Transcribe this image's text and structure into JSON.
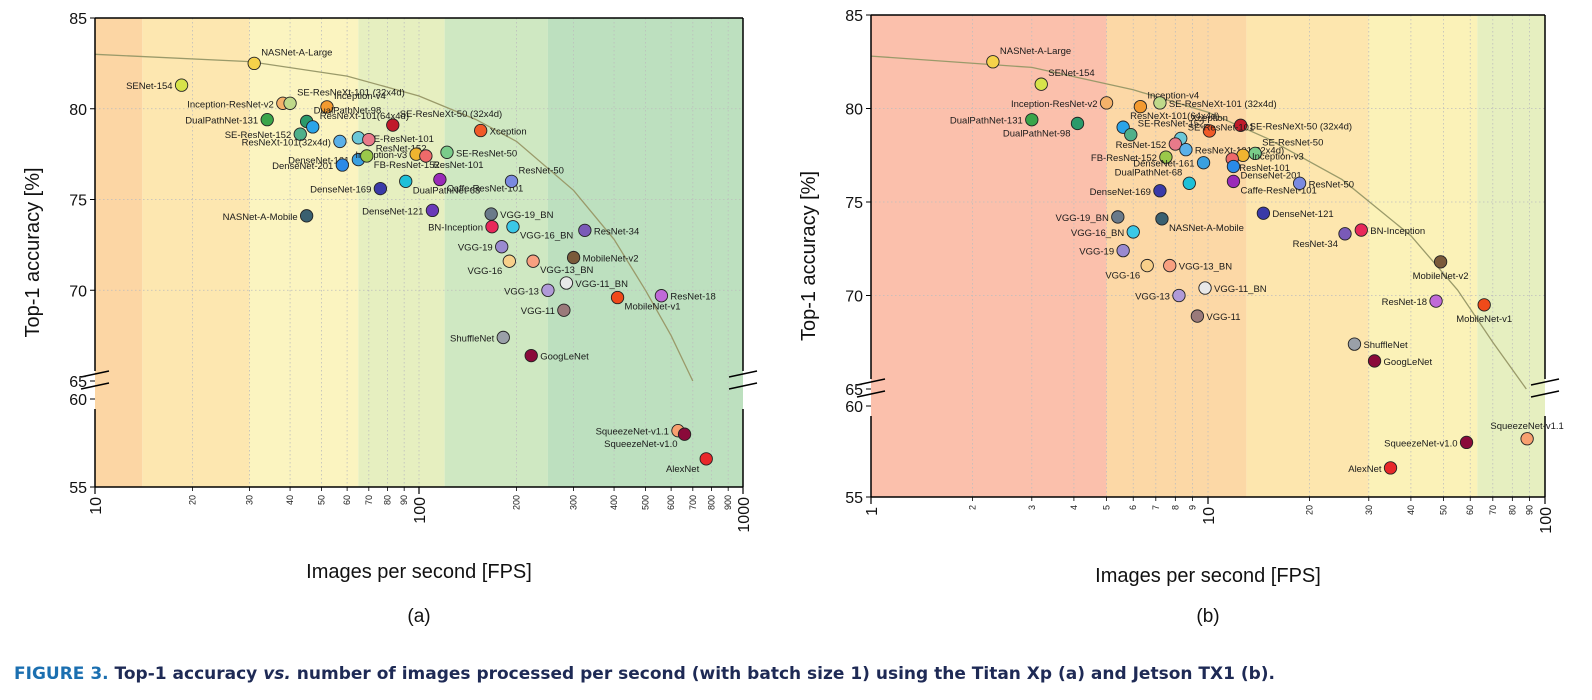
{
  "caption": {
    "figure_label": "FIGURE 3.",
    "text_a": "Top-1 accuracy",
    "text_vs": "vs.",
    "text_b": "number of images processed per second (with batch size 1) using the Titan Xp (a) and Jetson TX1 (b)."
  },
  "chart_data": [
    {
      "type": "scatter",
      "subplot_label": "(a)",
      "xlabel": "Images per second [FPS]",
      "ylabel": "Top-1 accuracy [%]",
      "xscale": "log",
      "xlim": [
        10,
        1000
      ],
      "ylim_upper": [
        65,
        85
      ],
      "ylim_lower": [
        55,
        60
      ],
      "y_ticks": [
        "85",
        "80",
        "75",
        "70",
        "65",
        "60",
        "55"
      ],
      "x_major_ticks": [
        "10",
        "100",
        "1000"
      ],
      "x_minor_ticks": [
        "20",
        "30",
        "40",
        "50",
        "60",
        "70",
        "80",
        "90",
        "200",
        "300",
        "400",
        "500",
        "600",
        "700",
        "800",
        "900"
      ],
      "bands": [
        {
          "from": 10,
          "to": 14,
          "color": "#fcd6a4"
        },
        {
          "from": 14,
          "to": 30,
          "color": "#fde7b0"
        },
        {
          "from": 30,
          "to": 65,
          "color": "#fbf4c0"
        },
        {
          "from": 65,
          "to": 120,
          "color": "#e6efc0"
        },
        {
          "from": 120,
          "to": 250,
          "color": "#cfe8c2"
        },
        {
          "from": 250,
          "to": 1000,
          "color": "#bde0bf"
        }
      ],
      "pareto_curve": [
        [
          10,
          83.0
        ],
        [
          30,
          82.6
        ],
        [
          60,
          81.8
        ],
        [
          100,
          80.7
        ],
        [
          150,
          79.4
        ],
        [
          200,
          78.2
        ],
        [
          300,
          75.5
        ],
        [
          400,
          72.8
        ],
        [
          500,
          70.0
        ],
        [
          600,
          67.5
        ],
        [
          700,
          65.0
        ]
      ],
      "points": [
        {
          "name": "NASNet-A-Large",
          "x": 31,
          "y": 82.5,
          "color": "#f5d24a",
          "label_pos": "ne"
        },
        {
          "name": "SENet-154",
          "x": 18.5,
          "y": 81.3,
          "color": "#d7e34a",
          "label_pos": "w"
        },
        {
          "name": "Inception-ResNet-v2",
          "x": 38,
          "y": 80.3,
          "color": "#f4b26a",
          "label_pos": "w"
        },
        {
          "name": "SE-ResNeXt-101 (32x4d)",
          "x": 40,
          "y": 80.3,
          "color": "#bfd98a",
          "label_pos": "ne"
        },
        {
          "name": "Inception-v4",
          "x": 52,
          "y": 80.1,
          "color": "#f39a30",
          "label_pos": "ne"
        },
        {
          "name": "DualPathNet-131",
          "x": 34,
          "y": 79.4,
          "color": "#3aa54a",
          "label_pos": "w"
        },
        {
          "name": "DualPathNet-98",
          "x": 45,
          "y": 79.3,
          "color": "#2a9a6a",
          "label_pos": "ne"
        },
        {
          "name": "ResNeXt-101(64x4d)",
          "x": 47,
          "y": 79.0,
          "color": "#2aa4e8",
          "label_pos": "ne"
        },
        {
          "name": "SE-ResNeXt-50 (32x4d)",
          "x": 83,
          "y": 79.1,
          "color": "#c01a2a",
          "label_pos": "ne"
        },
        {
          "name": "SE-ResNet-152",
          "x": 43,
          "y": 78.6,
          "color": "#4fb08a",
          "label_pos": "w"
        },
        {
          "name": "SE-ResNet-101",
          "x": 65,
          "y": 78.4,
          "color": "#6cc8d8",
          "label_pos": "e"
        },
        {
          "name": "ResNeXt-101(32x4d)",
          "x": 57,
          "y": 78.2,
          "color": "#5ab0e8",
          "label_pos": "w"
        },
        {
          "name": "ResNet-152",
          "x": 70,
          "y": 78.3,
          "color": "#e87a8a",
          "label_pos": "se"
        },
        {
          "name": "Xception",
          "x": 155,
          "y": 78.8,
          "color": "#f05a28",
          "label_pos": "e"
        },
        {
          "name": "DenseNet-161",
          "x": 65,
          "y": 77.2,
          "color": "#3aa0e0",
          "label_pos": "w"
        },
        {
          "name": "Inception-v3",
          "x": 98,
          "y": 77.5,
          "color": "#f0b430",
          "label_pos": "w"
        },
        {
          "name": "SE-ResNet-50",
          "x": 122,
          "y": 77.6,
          "color": "#7acc8a",
          "label_pos": "e"
        },
        {
          "name": "DenseNet-201",
          "x": 58,
          "y": 76.9,
          "color": "#2a8ae8",
          "label_pos": "w"
        },
        {
          "name": "FB-ResNet-152",
          "x": 69,
          "y": 77.4,
          "color": "#9ac84a",
          "label_pos": "se"
        },
        {
          "name": "ResNet-101",
          "x": 105,
          "y": 77.4,
          "color": "#ee6a6a",
          "label_pos": "se"
        },
        {
          "name": "DenseNet-169",
          "x": 76,
          "y": 75.6,
          "color": "#3a3aa8",
          "label_pos": "w"
        },
        {
          "name": "DualPathNet-68",
          "x": 91,
          "y": 76.0,
          "color": "#1ec0d8",
          "label_pos": "se"
        },
        {
          "name": "Caffe-ResNet-101",
          "x": 116,
          "y": 76.1,
          "color": "#9a2ab8",
          "label_pos": "se"
        },
        {
          "name": "ResNet-50",
          "x": 193,
          "y": 76.0,
          "color": "#7a8ae0",
          "label_pos": "ne"
        },
        {
          "name": "DenseNet-121",
          "x": 110,
          "y": 74.4,
          "color": "#6a3ab8",
          "label_pos": "w"
        },
        {
          "name": "NASNet-A-Mobile",
          "x": 45,
          "y": 74.1,
          "color": "#3a6070",
          "label_pos": "w"
        },
        {
          "name": "VGG-19_BN",
          "x": 167,
          "y": 74.2,
          "color": "#6a7a8a",
          "label_pos": "e"
        },
        {
          "name": "BN-Inception",
          "x": 168,
          "y": 73.5,
          "color": "#e8285a",
          "label_pos": "w"
        },
        {
          "name": "VGG-16_BN",
          "x": 195,
          "y": 73.5,
          "color": "#3ac8e8",
          "label_pos": "se"
        },
        {
          "name": "ResNet-34",
          "x": 325,
          "y": 73.3,
          "color": "#7a5ab8",
          "label_pos": "e"
        },
        {
          "name": "VGG-19",
          "x": 180,
          "y": 72.4,
          "color": "#9a8ad0",
          "label_pos": "w"
        },
        {
          "name": "VGG-16",
          "x": 190,
          "y": 71.6,
          "color": "#f8d08a",
          "label_pos": "sw"
        },
        {
          "name": "VGG-13_BN",
          "x": 225,
          "y": 71.6,
          "color": "#f8a080",
          "label_pos": "se"
        },
        {
          "name": "MobileNet-v2",
          "x": 300,
          "y": 71.8,
          "color": "#7a5a3a",
          "label_pos": "e"
        },
        {
          "name": "VGG-11_BN",
          "x": 285,
          "y": 70.4,
          "color": "#e8e8e8",
          "label_pos": "e"
        },
        {
          "name": "VGG-13",
          "x": 250,
          "y": 70.0,
          "color": "#b09ad8",
          "label_pos": "w"
        },
        {
          "name": "VGG-11",
          "x": 280,
          "y": 68.9,
          "color": "#9a7a7a",
          "label_pos": "w"
        },
        {
          "name": "MobileNet-v1",
          "x": 410,
          "y": 69.6,
          "color": "#f04a1a",
          "label_pos": "se"
        },
        {
          "name": "ResNet-18",
          "x": 560,
          "y": 69.7,
          "color": "#c06ad8",
          "label_pos": "e"
        },
        {
          "name": "ShuffleNet",
          "x": 182,
          "y": 67.4,
          "color": "#9aa0a8",
          "label_pos": "w"
        },
        {
          "name": "GoogLeNet",
          "x": 222,
          "y": 66.4,
          "color": "#8a0a3a",
          "label_pos": "e"
        },
        {
          "name": "SqueezeNet-v1.1",
          "x": 630,
          "y": 58.2,
          "color": "#f8a070",
          "label_pos": "w"
        },
        {
          "name": "SqueezeNet-v1.0",
          "x": 660,
          "y": 58.0,
          "color": "#8a0a3a",
          "label_pos": "sw"
        },
        {
          "name": "AlexNet",
          "x": 770,
          "y": 56.6,
          "color": "#e8282a",
          "label_pos": "sw"
        }
      ]
    },
    {
      "type": "scatter",
      "subplot_label": "(b)",
      "xlabel": "Images per second [FPS]",
      "ylabel": "Top-1 accuracy [%]",
      "xscale": "log",
      "xlim": [
        1,
        100
      ],
      "ylim_upper": [
        65,
        85
      ],
      "ylim_lower": [
        55,
        60
      ],
      "y_ticks": [
        "85",
        "80",
        "75",
        "70",
        "65",
        "60",
        "55"
      ],
      "x_major_ticks": [
        "1",
        "10",
        "100"
      ],
      "x_minor_ticks": [
        "2",
        "3",
        "4",
        "5",
        "6",
        "7",
        "8",
        "9",
        "20",
        "30",
        "40",
        "50",
        "60",
        "70",
        "80",
        "90"
      ],
      "bands": [
        {
          "from": 1,
          "to": 5,
          "color": "#fbc0ac"
        },
        {
          "from": 5,
          "to": 13,
          "color": "#fcd8a6"
        },
        {
          "from": 13,
          "to": 30,
          "color": "#fde6ae"
        },
        {
          "from": 30,
          "to": 63,
          "color": "#fbf2b8"
        },
        {
          "from": 63,
          "to": 100,
          "color": "#e6efc0"
        }
      ],
      "pareto_curve": [
        [
          1,
          82.8
        ],
        [
          3,
          82.2
        ],
        [
          6,
          81.0
        ],
        [
          10,
          79.8
        ],
        [
          15,
          78.4
        ],
        [
          25,
          76.2
        ],
        [
          40,
          73.2
        ],
        [
          55,
          70.3
        ],
        [
          70,
          67.5
        ],
        [
          88,
          65.0
        ]
      ],
      "points": [
        {
          "name": "NASNet-A-Large",
          "x": 2.3,
          "y": 82.5,
          "color": "#f5d24a",
          "label_pos": "ne"
        },
        {
          "name": "SENet-154",
          "x": 3.2,
          "y": 81.3,
          "color": "#d7e34a",
          "label_pos": "ne"
        },
        {
          "name": "Inception-ResNet-v2",
          "x": 5.0,
          "y": 80.3,
          "color": "#f4b26a",
          "label_pos": "w"
        },
        {
          "name": "Inception-v4",
          "x": 6.3,
          "y": 80.1,
          "color": "#f39a30",
          "label_pos": "ne"
        },
        {
          "name": "SE-ResNeXt-101 (32x4d)",
          "x": 7.2,
          "y": 80.3,
          "color": "#bfd98a",
          "label_pos": "e"
        },
        {
          "name": "DualPathNet-131",
          "x": 3.0,
          "y": 79.4,
          "color": "#3aa54a",
          "label_pos": "w"
        },
        {
          "name": "DualPathNet-98",
          "x": 4.1,
          "y": 79.2,
          "color": "#2a9a6a",
          "label_pos": "sw"
        },
        {
          "name": "ResNeXt-101(64x4d)",
          "x": 5.6,
          "y": 79.0,
          "color": "#2aa4e8",
          "label_pos": "ne"
        },
        {
          "name": "SE-ResNeXt-50 (32x4d)",
          "x": 12.5,
          "y": 79.1,
          "color": "#c01a2a",
          "label_pos": "e"
        },
        {
          "name": "SE-ResNet-152",
          "x": 5.9,
          "y": 78.6,
          "color": "#4fb08a",
          "label_pos": "ne"
        },
        {
          "name": "Xception",
          "x": 10.1,
          "y": 78.8,
          "color": "#f05a28",
          "label_pos": "n"
        },
        {
          "name": "SE-ResNet-101",
          "x": 8.3,
          "y": 78.4,
          "color": "#6cc8d8",
          "label_pos": "ne"
        },
        {
          "name": "ResNet-152",
          "x": 8.0,
          "y": 78.1,
          "color": "#e87a8a",
          "label_pos": "w"
        },
        {
          "name": "ResNeXt-101(32x4d)",
          "x": 8.6,
          "y": 77.8,
          "color": "#5ab0e8",
          "label_pos": "e"
        },
        {
          "name": "SE-ResNet-50",
          "x": 13.8,
          "y": 77.6,
          "color": "#7acc8a",
          "label_pos": "ne"
        },
        {
          "name": "FB-ResNet-152",
          "x": 7.5,
          "y": 77.4,
          "color": "#9ac84a",
          "label_pos": "w"
        },
        {
          "name": "Inception-v3",
          "x": 12.7,
          "y": 77.5,
          "color": "#f0b430",
          "label_pos": "e"
        },
        {
          "name": "DenseNet-161",
          "x": 9.7,
          "y": 77.1,
          "color": "#3aa0e0",
          "label_pos": "w"
        },
        {
          "name": "ResNet-101",
          "x": 11.8,
          "y": 77.3,
          "color": "#ee6a6a",
          "label_pos": "se"
        },
        {
          "name": "DenseNet-201",
          "x": 11.9,
          "y": 76.9,
          "color": "#2a8ae8",
          "label_pos": "se"
        },
        {
          "name": "DualPathNet-68",
          "x": 8.8,
          "y": 76.0,
          "color": "#1ec0d8",
          "label_pos": "nw"
        },
        {
          "name": "Caffe-ResNet-101",
          "x": 11.9,
          "y": 76.1,
          "color": "#9a2ab8",
          "label_pos": "se"
        },
        {
          "name": "ResNet-50",
          "x": 18.7,
          "y": 76.0,
          "color": "#7a8ae0",
          "label_pos": "e"
        },
        {
          "name": "DenseNet-169",
          "x": 7.2,
          "y": 75.6,
          "color": "#3a3aa8",
          "label_pos": "w"
        },
        {
          "name": "DenseNet-121",
          "x": 14.6,
          "y": 74.4,
          "color": "#3a3aa8",
          "label_pos": "e"
        },
        {
          "name": "VGG-19_BN",
          "x": 5.4,
          "y": 74.2,
          "color": "#6a7a8a",
          "label_pos": "w"
        },
        {
          "name": "NASNet-A-Mobile",
          "x": 7.3,
          "y": 74.1,
          "color": "#3a6070",
          "label_pos": "se"
        },
        {
          "name": "VGG-16_BN",
          "x": 6.0,
          "y": 73.4,
          "color": "#3ac8e8",
          "label_pos": "w"
        },
        {
          "name": "BN-Inception",
          "x": 28.5,
          "y": 73.5,
          "color": "#e8285a",
          "label_pos": "e"
        },
        {
          "name": "ResNet-34",
          "x": 25.5,
          "y": 73.3,
          "color": "#7a5ab8",
          "label_pos": "sw"
        },
        {
          "name": "VGG-19",
          "x": 5.6,
          "y": 72.4,
          "color": "#9a8ad0",
          "label_pos": "w"
        },
        {
          "name": "VGG-16",
          "x": 6.6,
          "y": 71.6,
          "color": "#f8d08a",
          "label_pos": "sw"
        },
        {
          "name": "VGG-13_BN",
          "x": 7.7,
          "y": 71.6,
          "color": "#f8a080",
          "label_pos": "e"
        },
        {
          "name": "MobileNet-v2",
          "x": 49,
          "y": 71.8,
          "color": "#7a5a3a",
          "label_pos": "s"
        },
        {
          "name": "VGG-11_BN",
          "x": 9.8,
          "y": 70.4,
          "color": "#e8e8e8",
          "label_pos": "e"
        },
        {
          "name": "VGG-13",
          "x": 8.2,
          "y": 70.0,
          "color": "#b09ad8",
          "label_pos": "w"
        },
        {
          "name": "ResNet-18",
          "x": 47.5,
          "y": 69.7,
          "color": "#c06ad8",
          "label_pos": "w"
        },
        {
          "name": "MobileNet-v1",
          "x": 66,
          "y": 69.5,
          "color": "#f04a1a",
          "label_pos": "s"
        },
        {
          "name": "VGG-11",
          "x": 9.3,
          "y": 68.9,
          "color": "#9a7a7a",
          "label_pos": "e"
        },
        {
          "name": "ShuffleNet",
          "x": 27.2,
          "y": 67.4,
          "color": "#9aa0a8",
          "label_pos": "e"
        },
        {
          "name": "GoogLeNet",
          "x": 31.2,
          "y": 66.5,
          "color": "#8a0a3a",
          "label_pos": "e"
        },
        {
          "name": "SqueezeNet-v1.1",
          "x": 88.5,
          "y": 58.2,
          "color": "#f8a070",
          "label_pos": "n"
        },
        {
          "name": "SqueezeNet-v1.0",
          "x": 58.5,
          "y": 58.0,
          "color": "#8a0a3a",
          "label_pos": "w"
        },
        {
          "name": "AlexNet",
          "x": 34.8,
          "y": 56.6,
          "color": "#e8282a",
          "label_pos": "w"
        }
      ]
    }
  ]
}
